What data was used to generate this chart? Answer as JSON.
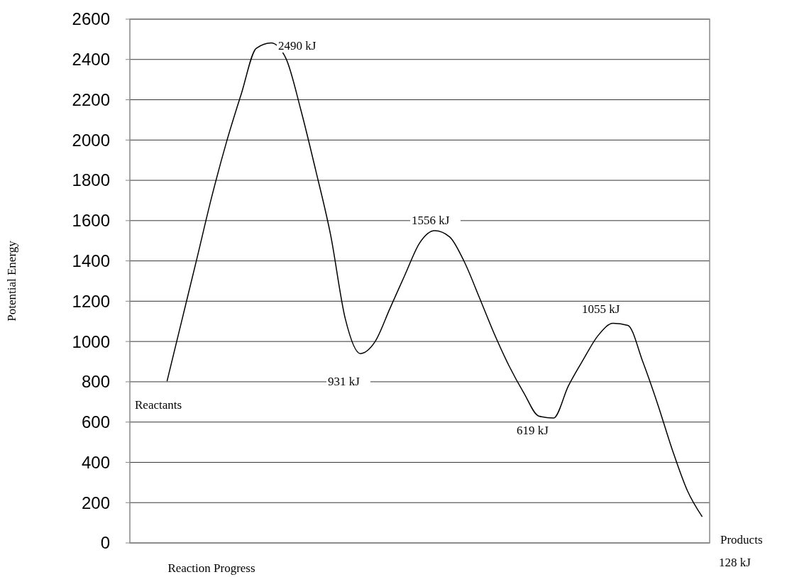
{
  "chart_data": {
    "type": "line",
    "xlabel": "Reaction Progress",
    "ylabel": "Potential Energy",
    "categories": [
      null,
      null,
      null,
      null,
      null,
      null,
      null,
      null,
      null,
      null,
      null,
      null,
      null,
      null,
      null,
      null,
      null,
      null,
      null,
      null,
      null,
      null,
      null,
      null,
      null,
      null,
      null,
      null,
      null,
      null,
      null,
      null,
      null,
      null,
      null,
      null,
      null,
      null,
      null
    ],
    "series": [
      {
        "color": "#000000",
        "values": [
          null,
          null,
          803,
          1106,
          1409,
          1716,
          1990,
          2230,
          2455,
          2482,
          2405,
          2150,
          1850,
          1530,
          1110,
          940,
          1000,
          1165,
          1330,
          1490,
          1550,
          1520,
          1395,
          1220,
          1040,
          880,
          745,
          630,
          620,
          780,
          910,
          1030,
          1090,
          1080,
          900,
          690,
          460,
          260,
          130
        ]
      }
    ],
    "ylim": [
      0,
      2600
    ],
    "yticks": [
      0,
      200,
      400,
      600,
      800,
      1000,
      1200,
      1400,
      1600,
      1800,
      2000,
      2200,
      2400,
      2600
    ],
    "grid": "y",
    "legend": false,
    "marker": "none",
    "line_style": "solid",
    "annotations": [
      "2490 kJ",
      "1556 kJ",
      "1055 kJ",
      "931 kJ",
      "619 kJ",
      "Reactants",
      "Products",
      "128 kJ"
    ]
  }
}
